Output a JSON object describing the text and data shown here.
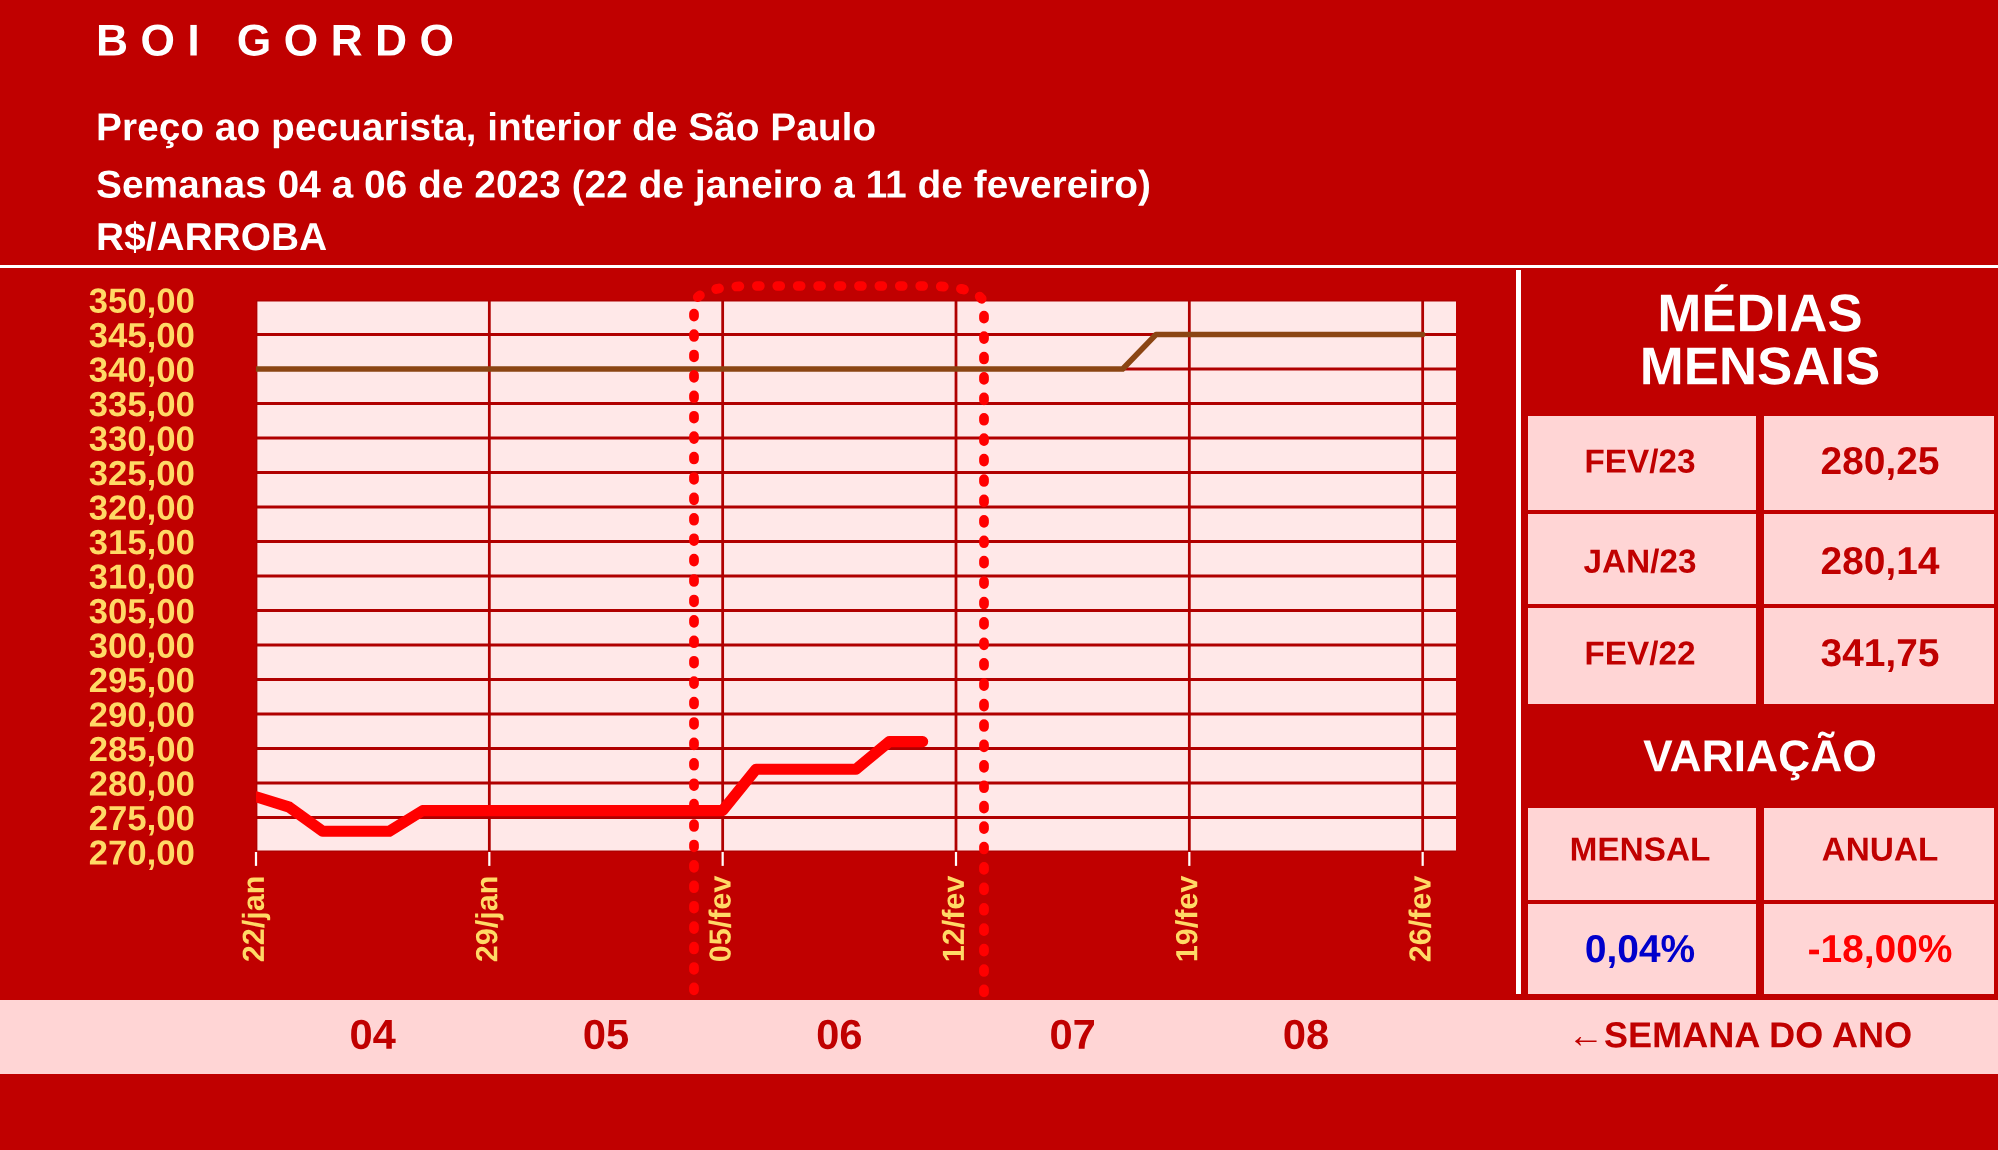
{
  "chart_data": {
    "type": "line",
    "title": "B O I   G O R D O",
    "subtitle": "Preço ao pecuarista, interior de São Paulo\nSemanas 04 a 06 de 2023 (22 de janeiro a 11 de fevereiro)",
    "ylabel": "R$/ARROBA",
    "series": [
      {
        "color": "#8b4513",
        "x": [
          "2023-01-22",
          "2023-02-17",
          "2023-02-18",
          "2023-02-26"
        ],
        "values": [
          340,
          340,
          345,
          345
        ]
      },
      {
        "color": "#ff0000",
        "x": [
          "2023-01-22",
          "2023-01-23",
          "2023-01-24",
          "2023-01-26",
          "2023-01-27",
          "2023-02-05",
          "2023-02-06",
          "2023-02-09",
          "2023-02-10",
          "2023-02-11"
        ],
        "values": [
          278,
          276.5,
          273,
          273,
          276,
          276,
          282,
          282,
          286,
          286
        ]
      }
    ],
    "xlim": [
      "2023-01-22",
      "2023-02-27"
    ],
    "xticks": [
      {
        "value": "2023-01-22",
        "label": "22/jan"
      },
      {
        "value": "2023-01-29",
        "label": "29/jan"
      },
      {
        "value": "2023-02-05",
        "label": "05/fev"
      },
      {
        "value": "2023-02-12",
        "label": "12/fev"
      },
      {
        "value": "2023-02-19",
        "label": "19/fev"
      },
      {
        "value": "2023-02-26",
        "label": "26/fev"
      }
    ],
    "ylim": [
      270,
      350
    ],
    "yticks": [
      {
        "value": 270,
        "label": "270,00"
      },
      {
        "value": 275,
        "label": "275,00"
      },
      {
        "value": 280,
        "label": "280,00"
      },
      {
        "value": 285,
        "label": "285,00"
      },
      {
        "value": 290,
        "label": "290,00"
      },
      {
        "value": 295,
        "label": "295,00"
      },
      {
        "value": 300,
        "label": "300,00"
      },
      {
        "value": 305,
        "label": "305,00"
      },
      {
        "value": 310,
        "label": "310,00"
      },
      {
        "value": 315,
        "label": "315,00"
      },
      {
        "value": 320,
        "label": "320,00"
      },
      {
        "value": 325,
        "label": "325,00"
      },
      {
        "value": 330,
        "label": "330,00"
      },
      {
        "value": 335,
        "label": "335,00"
      },
      {
        "value": 340,
        "label": "340,00"
      },
      {
        "value": 345,
        "label": "345,00"
      },
      {
        "value": 350,
        "label": "350,00"
      }
    ],
    "grid": true,
    "marker": "none",
    "line_style": "solid",
    "legend": false,
    "annotations": [
      "MÉDIAS\nMENSAIS",
      "FEV/23",
      "280,25",
      "JAN/23",
      "280,14",
      "FEV/22",
      "341,75",
      "VARIAÇÃO",
      "MENSAL",
      "ANUAL",
      "0,04%",
      "-18,00%",
      "←SEMANA DO ANO",
      "04",
      "05",
      "06",
      "07",
      "08"
    ]
  }
}
